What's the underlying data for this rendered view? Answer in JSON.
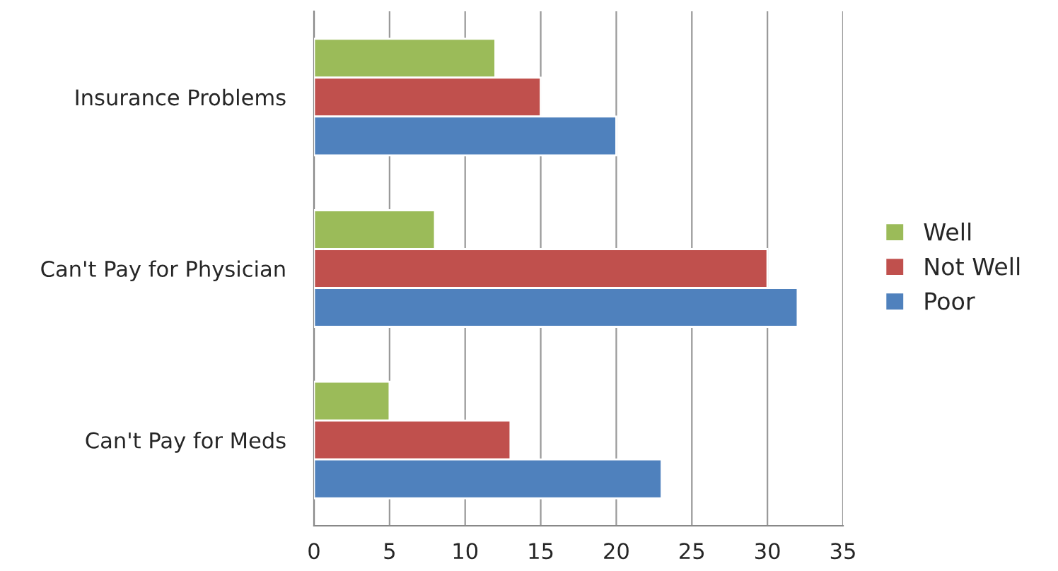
{
  "chart_data": {
    "type": "bar",
    "orientation": "horizontal",
    "categories": [
      "Insurance Problems",
      "Can't Pay for Physician",
      "Can't Pay for Meds"
    ],
    "series": [
      {
        "name": "Well",
        "color": "#9bbb59",
        "values": [
          12,
          8,
          5
        ]
      },
      {
        "name": "Not Well",
        "color": "#c0504d",
        "values": [
          15,
          30,
          13
        ]
      },
      {
        "name": "Poor",
        "color": "#4f81bd",
        "values": [
          20,
          32,
          23
        ]
      }
    ],
    "xlim": [
      0,
      35
    ],
    "xticks": [
      0,
      5,
      10,
      15,
      20,
      25,
      30,
      35
    ],
    "grid": "x",
    "legend": "right"
  }
}
